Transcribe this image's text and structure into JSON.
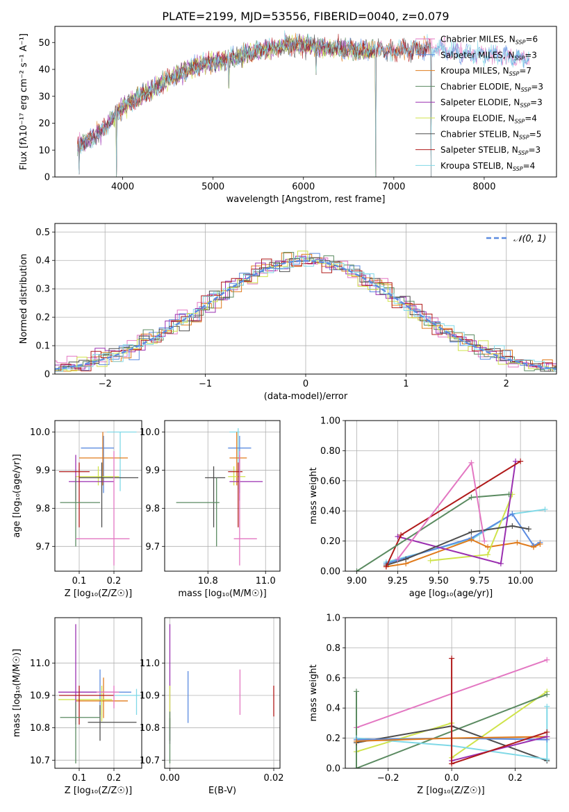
{
  "figure": {
    "title": "PLATE=2199, MJD=53556, FIBERID=0040, z=0.079"
  },
  "colors": {
    "pink": "#e377c2",
    "blue": "#5b8be0",
    "orange": "#e07b1c",
    "green": "#5a8a60",
    "purple": "#9a2fb0",
    "yellowgreen": "#cfe34a",
    "dark": "#4d4d4d",
    "red": "#b01a1a",
    "cyan": "#7fd8e6",
    "dashed": "#5b8be0"
  },
  "chart_data": [
    {
      "id": "spectrum",
      "type": "line",
      "xlabel": "wavelength [Angstrom, rest frame]",
      "ylabel": "Flux [fλ10⁻¹⁷ erg cm⁻² s⁻¹ A⁻¹]",
      "xlim": [
        3250,
        8800
      ],
      "ylim": [
        0,
        56
      ],
      "xticks": [
        4000,
        5000,
        6000,
        7000,
        8000
      ],
      "yticks": [
        0,
        10,
        20,
        30,
        40,
        50
      ],
      "grid": false,
      "legend_position": "upper-right",
      "continuum": [
        [
          3500,
          12
        ],
        [
          3700,
          15
        ],
        [
          3900,
          22
        ],
        [
          4000,
          26
        ],
        [
          4200,
          30
        ],
        [
          4400,
          34
        ],
        [
          4600,
          38
        ],
        [
          4800,
          41
        ],
        [
          5000,
          43
        ],
        [
          5200,
          44
        ],
        [
          5500,
          47
        ],
        [
          5800,
          49
        ],
        [
          6000,
          49
        ],
        [
          6300,
          48
        ],
        [
          6600,
          47
        ],
        [
          7000,
          47
        ],
        [
          7400,
          48
        ],
        [
          7800,
          46
        ],
        [
          8200,
          45
        ],
        [
          8500,
          44
        ]
      ],
      "dips": [
        [
          3520,
          1
        ],
        [
          3930,
          0
        ],
        [
          5175,
          33
        ],
        [
          6140,
          38
        ],
        [
          6800,
          0
        ],
        [
          7410,
          0
        ]
      ],
      "series": [
        {
          "name": "Chabrier MILES, N_SSP=6",
          "color": "pink",
          "range": [
            3500,
            8500
          ]
        },
        {
          "name": "Salpeter MILES, N_SSP=3",
          "color": "blue",
          "range": [
            3500,
            8500
          ]
        },
        {
          "name": "Kroupa MILES, N_SSP=7",
          "color": "orange",
          "range": [
            3500,
            7420
          ]
        },
        {
          "name": "Chabrier ELODIE, N_SSP=3",
          "color": "green",
          "range": [
            3500,
            6800
          ]
        },
        {
          "name": "Salpeter ELODIE, N_SSP=3",
          "color": "purple",
          "range": [
            3500,
            6800
          ]
        },
        {
          "name": "Kroupa ELODIE, N_SSP=4",
          "color": "yellowgreen",
          "range": [
            3900,
            6800
          ]
        },
        {
          "name": "Chabrier STELIB, N_SSP=5",
          "color": "dark",
          "range": [
            3500,
            7420
          ]
        },
        {
          "name": "Salpeter STELIB, N_SSP=3",
          "color": "red",
          "range": [
            3500,
            7420
          ]
        },
        {
          "name": "Kroupa STELIB, N_SSP=4",
          "color": "cyan",
          "range": [
            3500,
            8500
          ]
        }
      ]
    },
    {
      "id": "residuals",
      "type": "bar",
      "xlabel": "(data-model)/error",
      "ylabel": "Normed distribution",
      "xlim": [
        -2.5,
        2.5
      ],
      "ylim": [
        0,
        0.53
      ],
      "xticks": [
        -2,
        -1,
        0,
        1,
        2
      ],
      "yticks": [
        0.0,
        0.1,
        0.2,
        0.3,
        0.4,
        0.5
      ],
      "grid": true,
      "legend_position": "upper-right",
      "legend": "𝒩(0, 1)",
      "bin_width": 0.1,
      "series_colors": [
        "pink",
        "blue",
        "orange",
        "green",
        "purple",
        "yellowgreen",
        "dark",
        "red",
        "cyan"
      ]
    },
    {
      "id": "age-Z",
      "type": "scatter",
      "xlabel": "Z [log₁₀(Z/Z☉)]",
      "ylabel": "age  [log₁₀(age/yr)]",
      "xlim": [
        0.03,
        0.28
      ],
      "ylim": [
        9.635,
        10.03
      ],
      "xticks": [
        0.1,
        0.2
      ],
      "yticks": [
        9.7,
        9.8,
        9.9,
        10.0
      ],
      "grid": true,
      "points": [
        {
          "c": "cyan",
          "x": 0.218,
          "y": 10.0,
          "xe": [
            0.18,
            0.265
          ],
          "ye": [
            9.845,
            10.0
          ]
        },
        {
          "c": "blue",
          "x": 0.17,
          "y": 9.958,
          "xe": [
            0.105,
            0.2
          ],
          "ye": [
            9.84,
            9.99
          ]
        },
        {
          "c": "orange",
          "x": 0.168,
          "y": 9.932,
          "xe": [
            0.1,
            0.24
          ],
          "ye": [
            9.86,
            10.0
          ]
        },
        {
          "c": "yellowgreen",
          "x": 0.155,
          "y": 9.883,
          "xe": [
            0.088,
            0.215
          ],
          "ye": [
            9.86,
            9.91
          ]
        },
        {
          "c": "purple",
          "x": 0.09,
          "y": 9.87,
          "xe": [
            0.07,
            0.2
          ],
          "ye": [
            9.82,
            9.94
          ]
        },
        {
          "c": "dark",
          "x": 0.165,
          "y": 9.88,
          "xe": [
            0.1,
            0.27
          ],
          "ye": [
            9.75,
            9.92
          ]
        },
        {
          "c": "red",
          "x": 0.1,
          "y": 9.896,
          "xe": [
            0.042,
            0.13
          ],
          "ye": [
            9.75,
            9.92
          ]
        },
        {
          "c": "green",
          "x": 0.09,
          "y": 9.815,
          "xe": [
            0.045,
            0.16
          ],
          "ye": [
            9.7,
            9.88
          ]
        },
        {
          "c": "pink",
          "x": 0.2,
          "y": 9.72,
          "xe": [
            0.09,
            0.245
          ],
          "ye": [
            9.65,
            9.95
          ]
        }
      ]
    },
    {
      "id": "age-mass",
      "type": "scatter",
      "xlabel": "mass [log₁₀(M/M☉)]",
      "ylabel": "",
      "xlim": [
        10.65,
        11.05
      ],
      "ylim": [
        9.635,
        10.03
      ],
      "xticks": [
        10.8,
        11.0
      ],
      "yticks": [
        9.7,
        9.8,
        9.9,
        10.0
      ],
      "grid": true,
      "points": [
        {
          "c": "cyan",
          "x": 10.905,
          "y": 10.0,
          "xe": [
            10.875,
            10.91
          ],
          "ye": [
            9.85,
            10.01
          ]
        },
        {
          "c": "blue",
          "x": 10.91,
          "y": 9.958,
          "xe": [
            10.87,
            10.95
          ],
          "ye": [
            9.84,
            9.99
          ]
        },
        {
          "c": "orange",
          "x": 10.9,
          "y": 9.932,
          "xe": [
            10.875,
            10.935
          ],
          "ye": [
            9.86,
            10.0
          ]
        },
        {
          "c": "yellowgreen",
          "x": 10.89,
          "y": 9.883,
          "xe": [
            10.87,
            10.93
          ],
          "ye": [
            9.86,
            9.91
          ]
        },
        {
          "c": "purple",
          "x": 10.91,
          "y": 9.87,
          "xe": [
            10.875,
            10.99
          ],
          "ye": [
            9.82,
            9.94
          ]
        },
        {
          "c": "dark",
          "x": 10.82,
          "y": 9.88,
          "xe": [
            10.79,
            10.86
          ],
          "ye": [
            9.75,
            9.91
          ]
        },
        {
          "c": "red",
          "x": 10.905,
          "y": 9.896,
          "xe": [
            10.87,
            10.92
          ],
          "ye": [
            9.75,
            9.92
          ]
        },
        {
          "c": "green",
          "x": 10.83,
          "y": 9.815,
          "xe": [
            10.69,
            10.84
          ],
          "ye": [
            9.7,
            9.88
          ]
        },
        {
          "c": "pink",
          "x": 10.91,
          "y": 9.72,
          "xe": [
            10.89,
            10.97
          ],
          "ye": [
            9.65,
            9.95
          ]
        }
      ]
    },
    {
      "id": "weight-age",
      "type": "line",
      "xlabel": "age  [log₁₀(age/yr)]",
      "ylabel": "mass weight",
      "xlim": [
        8.93,
        10.22
      ],
      "ylim": [
        0,
        1.0
      ],
      "xticks": [
        9.0,
        9.25,
        9.5,
        9.75,
        10.0
      ],
      "yticks": [
        0.0,
        0.2,
        0.4,
        0.6,
        0.8,
        1.0
      ],
      "grid": true,
      "series": [
        {
          "c": "cyan",
          "pts": [
            [
              9.18,
              0.06
            ],
            [
              9.7,
              0.21
            ],
            [
              9.95,
              0.38
            ],
            [
              10.15,
              0.41
            ]
          ]
        },
        {
          "c": "blue",
          "pts": [
            [
              9.18,
              0.05
            ],
            [
              9.7,
              0.22
            ],
            [
              9.95,
              0.38
            ],
            [
              10.08,
              0.17
            ],
            [
              10.12,
              0.19
            ]
          ]
        },
        {
          "c": "orange",
          "pts": [
            [
              9.18,
              0.03
            ],
            [
              9.3,
              0.05
            ],
            [
              9.7,
              0.21
            ],
            [
              9.8,
              0.16
            ],
            [
              9.98,
              0.19
            ],
            [
              10.08,
              0.16
            ],
            [
              10.12,
              0.18
            ]
          ]
        },
        {
          "c": "yellowgreen",
          "pts": [
            [
              9.45,
              0.07
            ],
            [
              9.8,
              0.11
            ],
            [
              9.95,
              0.51
            ]
          ]
        },
        {
          "c": "purple",
          "pts": [
            [
              9.25,
              0.23
            ],
            [
              9.88,
              0.05
            ],
            [
              9.97,
              0.73
            ]
          ]
        },
        {
          "c": "dark",
          "pts": [
            [
              9.18,
              0.04
            ],
            [
              9.3,
              0.08
            ],
            [
              9.7,
              0.26
            ],
            [
              9.95,
              0.3
            ],
            [
              10.05,
              0.28
            ]
          ]
        },
        {
          "c": "red",
          "pts": [
            [
              9.18,
              0.03
            ],
            [
              9.27,
              0.24
            ],
            [
              10.0,
              0.73
            ]
          ]
        },
        {
          "c": "green",
          "pts": [
            [
              9.0,
              0.0
            ],
            [
              9.7,
              0.49
            ],
            [
              9.93,
              0.51
            ]
          ]
        },
        {
          "c": "pink",
          "pts": [
            [
              9.25,
              0.08
            ],
            [
              9.7,
              0.72
            ],
            [
              9.78,
              0.2
            ]
          ]
        }
      ]
    },
    {
      "id": "mass-Z",
      "type": "scatter",
      "xlabel": "Z [log₁₀(Z/Z☉)]",
      "ylabel": "mass [log₁₀(M/M☉)]",
      "xlim": [
        0.03,
        0.28
      ],
      "ylim": [
        10.675,
        11.14
      ],
      "xticks": [
        0.1,
        0.2
      ],
      "yticks": [
        10.7,
        10.8,
        10.9,
        11.0
      ],
      "grid": true,
      "points": [
        {
          "c": "cyan",
          "x": 0.265,
          "y": 10.9,
          "xe": [
            0.2,
            0.275
          ],
          "ye": [
            10.84,
            10.92
          ]
        },
        {
          "c": "blue",
          "x": 0.16,
          "y": 10.91,
          "xe": [
            0.1,
            0.25
          ],
          "ye": [
            10.84,
            10.98
          ]
        },
        {
          "c": "orange",
          "x": 0.17,
          "y": 10.883,
          "xe": [
            0.09,
            0.24
          ],
          "ye": [
            10.83,
            10.955
          ]
        },
        {
          "c": "yellowgreen",
          "x": 0.165,
          "y": 10.887,
          "xe": [
            0.04,
            0.195
          ],
          "ye": [
            10.82,
            10.93
          ]
        },
        {
          "c": "purple",
          "x": 0.09,
          "y": 10.91,
          "xe": [
            0.04,
            0.2
          ],
          "ye": [
            10.81,
            11.12
          ]
        },
        {
          "c": "dark",
          "x": 0.16,
          "y": 10.817,
          "xe": [
            0.125,
            0.265
          ],
          "ye": [
            10.76,
            10.87
          ]
        },
        {
          "c": "red",
          "x": 0.1,
          "y": 10.9,
          "xe": [
            0.042,
            0.2
          ],
          "ye": [
            10.81,
            10.93
          ]
        },
        {
          "c": "green",
          "x": 0.09,
          "y": 10.832,
          "xe": [
            0.045,
            0.16
          ],
          "ye": [
            10.69,
            10.88
          ]
        },
        {
          "c": "pink",
          "x": 0.2,
          "y": 10.91,
          "xe": [
            0.15,
            0.215
          ],
          "ye": [
            10.86,
            10.93
          ]
        }
      ]
    },
    {
      "id": "mass-EBV",
      "type": "scatter",
      "xlabel": "E(B-V)",
      "ylabel": "",
      "xlim": [
        -0.001,
        0.0212
      ],
      "ylim": [
        10.675,
        11.14
      ],
      "xticks": [
        0.0,
        0.02
      ],
      "yticks": [
        10.7,
        10.8,
        10.9,
        11.0
      ],
      "grid": true,
      "points": [
        {
          "c": "purple",
          "x": 0.0,
          "ye": [
            10.75,
            11.12
          ]
        },
        {
          "c": "yellowgreen",
          "x": 0.0,
          "ye": [
            10.8,
            10.93
          ]
        },
        {
          "c": "dark",
          "x": 0.0,
          "ye": [
            10.76,
            10.83
          ]
        },
        {
          "c": "green",
          "x": 0.0,
          "ye": [
            10.69,
            10.85
          ]
        },
        {
          "c": "blue",
          "x": 0.0035,
          "ye": [
            10.815,
            10.975
          ]
        },
        {
          "c": "pink",
          "x": 0.0135,
          "ye": [
            10.84,
            10.98
          ]
        },
        {
          "c": "red",
          "x": 0.02,
          "ye": [
            10.835,
            10.93
          ]
        }
      ]
    },
    {
      "id": "weight-Z",
      "type": "line",
      "xlabel": "Z [log₁₀(Z/Z☉)]",
      "ylabel": "mass weight",
      "xlim": [
        -0.335,
        0.33
      ],
      "ylim": [
        0,
        1.0
      ],
      "xticks": [
        -0.2,
        0.0,
        0.2
      ],
      "yticks": [
        0.0,
        0.2,
        0.4,
        0.6,
        0.8,
        1.0
      ],
      "grid": true,
      "series": [
        {
          "c": "pink",
          "pts": [
            [
              -0.3,
              0.27
            ],
            [
              0.3,
              0.72
            ]
          ]
        },
        {
          "c": "yellowgreen",
          "pts": [
            [
              -0.3,
              0.11
            ],
            [
              0.0,
              0.3
            ],
            [
              0.0,
              0.07
            ],
            [
              0.3,
              0.51
            ]
          ]
        },
        {
          "c": "green",
          "pts": [
            [
              -0.3,
              0.51
            ],
            [
              -0.3,
              0.0
            ],
            [
              0.3,
              0.49
            ]
          ]
        },
        {
          "c": "dark",
          "pts": [
            [
              -0.3,
              0.17
            ],
            [
              0.0,
              0.28
            ],
            [
              0.3,
              0.05
            ]
          ]
        },
        {
          "c": "cyan",
          "pts": [
            [
              -0.3,
              0.2
            ],
            [
              0.0,
              0.15
            ],
            [
              0.3,
              0.06
            ],
            [
              0.3,
              0.41
            ]
          ]
        },
        {
          "c": "blue",
          "pts": [
            [
              -0.3,
              0.19
            ],
            [
              0.0,
              0.2
            ],
            [
              0.3,
              0.19
            ]
          ]
        },
        {
          "c": "orange",
          "pts": [
            [
              -0.3,
              0.18
            ],
            [
              0.0,
              0.2
            ],
            [
              0.3,
              0.21
            ]
          ]
        },
        {
          "c": "purple",
          "pts": [
            [
              0.0,
              0.05
            ],
            [
              0.3,
              0.21
            ]
          ]
        },
        {
          "c": "red",
          "pts": [
            [
              0.0,
              0.73
            ],
            [
              0.0,
              0.03
            ],
            [
              0.3,
              0.24
            ]
          ]
        }
      ]
    }
  ]
}
